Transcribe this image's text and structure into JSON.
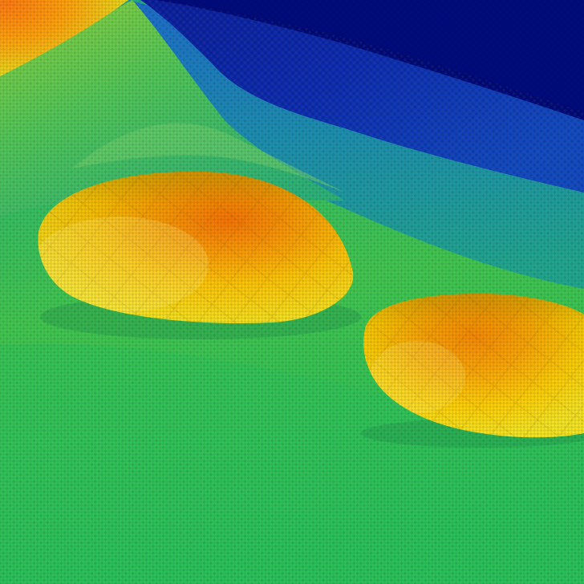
{
  "image": {
    "subject": "3d-surface-render",
    "colormap": [
      "#000a78",
      "#0b2bb4",
      "#1a74c4",
      "#19a38a",
      "#3cc83c",
      "#a0d232",
      "#ffe600",
      "#ffa000",
      "#ff6400"
    ],
    "colors": {
      "background_dark_blue": "#000a78",
      "upper_band_blue": "#0e3aae",
      "plane_green": "#3ec547",
      "plane_cyan": "#1d9f95",
      "dome_yellow": "#ffd21a",
      "dome_orange": "#ff8c00",
      "corner_orange": "#ff8a12"
    },
    "mesh_texture": "visible"
  }
}
